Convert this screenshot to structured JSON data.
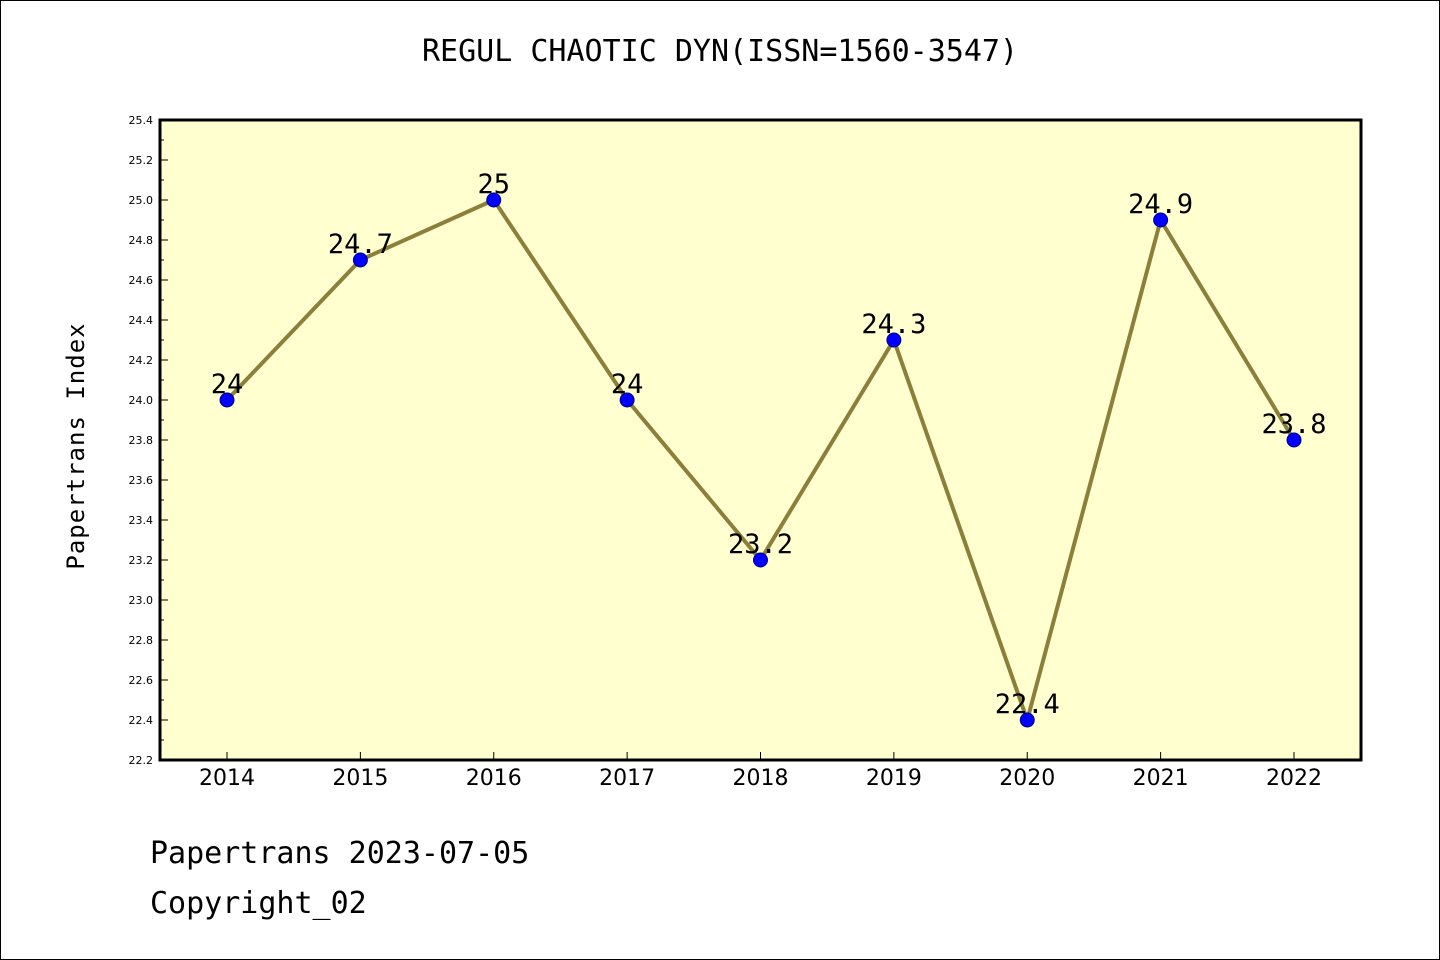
{
  "chart_data": {
    "type": "line",
    "title": "REGUL CHAOTIC DYN(ISSN=1560-3547)",
    "xlabel": "",
    "ylabel": "Papertrans Index",
    "categories": [
      "2014",
      "2015",
      "2016",
      "2017",
      "2018",
      "2019",
      "2020",
      "2021",
      "2022"
    ],
    "values": [
      24.0,
      24.7,
      25.0,
      24.0,
      23.2,
      24.3,
      22.4,
      24.9,
      23.8
    ],
    "data_labels": [
      "24",
      "24.7",
      "25",
      "24",
      "23.2",
      "24.3",
      "22.4",
      "24.9",
      "23.8"
    ],
    "ylim": [
      22.2,
      25.4
    ],
    "yticks": [
      "22.2",
      "22.4",
      "22.6",
      "22.8",
      "23.0",
      "23.2",
      "23.4",
      "23.6",
      "23.8",
      "24.0",
      "24.2",
      "24.4",
      "24.6",
      "24.8",
      "25.0",
      "25.2",
      "25.4"
    ],
    "grid": false,
    "colors": {
      "plot_background": "#ffffd0",
      "line": "#8b7f3a",
      "marker_fill": "#0000ff",
      "marker_edge": "#000080"
    }
  },
  "footer": {
    "line1": "Papertrans 2023-07-05",
    "line2": "Copyright_02"
  }
}
